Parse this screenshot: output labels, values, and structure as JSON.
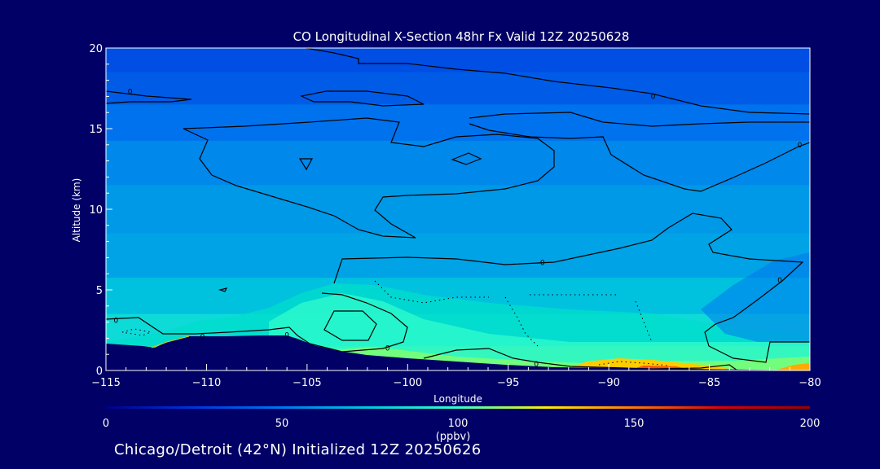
{
  "chart_data": {
    "type": "heatmap",
    "title": "CO Longitudinal X-Section 48hr  Fx Valid 12Z 20250628",
    "xlabel": "Longitude",
    "ylabel": "Altitude (km)",
    "xlim": [
      -115,
      -80
    ],
    "ylim": [
      0,
      20
    ],
    "x_ticks": [
      "−115",
      "−110",
      "−105",
      "−100",
      "−95",
      "−90",
      "−85",
      "−80"
    ],
    "y_ticks": [
      "0",
      "5",
      "10",
      "15",
      "20"
    ],
    "color_scale": {
      "min": 0,
      "max": 200,
      "ticks": [
        "0",
        "50",
        "100",
        "150",
        "200"
      ],
      "unit": "(ppbv)",
      "colors": [
        "#000088",
        "#0033dd",
        "#0077ee",
        "#00ccdd",
        "#33ffcc",
        "#ffee00",
        "#ff7700",
        "#dd0000",
        "#990000"
      ]
    },
    "layers": [
      {
        "altitude_km": 19.5,
        "co_ppbv": 35
      },
      {
        "altitude_km": 17.5,
        "co_ppbv": 40
      },
      {
        "altitude_km": 15.5,
        "co_ppbv": 48
      },
      {
        "altitude_km": 13,
        "co_ppbv": 55
      },
      {
        "altitude_km": 10,
        "co_ppbv": 60
      },
      {
        "altitude_km": 7,
        "co_ppbv": 63
      },
      {
        "altitude_km": 4.5,
        "co_ppbv": 72
      },
      {
        "altitude_km": 2.5,
        "co_ppbv": 82
      },
      {
        "altitude_km": 0.5,
        "co_ppbv": 120
      }
    ],
    "contour_labels": [
      {
        "text": "0",
        "lon": -113.8,
        "alt": 17.3
      },
      {
        "text": "0",
        "lon": -87.8,
        "alt": 17.0
      },
      {
        "text": "0",
        "lon": -80.5,
        "alt": 14.0
      },
      {
        "text": "0",
        "lon": -93.3,
        "alt": 6.7
      },
      {
        "text": "0",
        "lon": -81.5,
        "alt": 5.6
      },
      {
        "text": "0",
        "lon": -114.5,
        "alt": 3.1
      },
      {
        "text": "0",
        "lon": -110.2,
        "alt": 2.1
      },
      {
        "text": "0",
        "lon": -106.0,
        "alt": 2.2
      },
      {
        "text": "0",
        "lon": -101.0,
        "alt": 1.4
      },
      {
        "text": "0",
        "lon": -93.6,
        "alt": 0.4
      }
    ]
  },
  "footer": {
    "caption": "Chicago/Detroit (42°N) Initialized 12Z 20250626"
  }
}
